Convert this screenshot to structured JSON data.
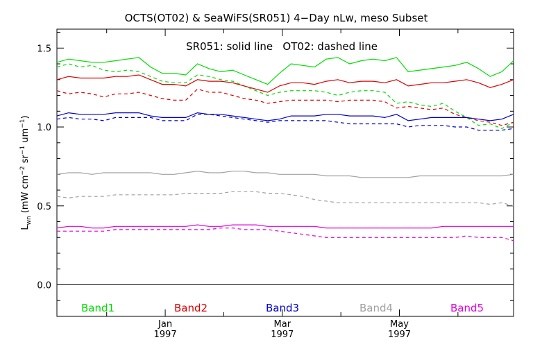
{
  "chart_data": {
    "type": "line",
    "title": "OCTS(OT02) & SeaWiFS(SR051) 4−Day nLw, meso Subset",
    "annotation": "SR051: solid line   OT02: dashed line",
    "ylabel": "L",
    "ylabel_sub": "wn",
    "ylabel_units": " (mW cm",
    "ylabel_units_parts": [
      "(mW cm",
      "−2",
      " sr",
      "−1",
      " um",
      "−1",
      ")"
    ],
    "ylim": [
      -0.2,
      1.62
    ],
    "yticks": [
      0.0,
      0.5,
      1.0,
      1.5
    ],
    "ytick_labels": [
      "0.0",
      "0.5",
      "1.0",
      "1.5"
    ],
    "xlim": [
      0,
      39
    ],
    "x_month_ticks": [
      {
        "label": "Jan",
        "year": "1997",
        "x": 9.25
      },
      {
        "label": "Mar",
        "year": "1997",
        "x": 19.25
      },
      {
        "label": "May",
        "year": "1997",
        "x": 29.25
      }
    ],
    "x_minor_ticks": [
      4.25,
      14.25,
      24.25,
      34.25
    ],
    "reference_line_y": 0.0,
    "grid": false,
    "legend": "bottom",
    "bands": [
      {
        "name": "Band1",
        "color": "#00dd00"
      },
      {
        "name": "Band2",
        "color": "#dd0000"
      },
      {
        "name": "Band3",
        "color": "#0000cc"
      },
      {
        "name": "Band4",
        "color": "#a0a0a0"
      },
      {
        "name": "Band5",
        "color": "#dd00dd"
      }
    ],
    "x": [
      0,
      1,
      2,
      3,
      4,
      5,
      6,
      7,
      8,
      9,
      10,
      11,
      12,
      13,
      14,
      15,
      16,
      17,
      18,
      19,
      20,
      21,
      22,
      23,
      24,
      25,
      26,
      27,
      28,
      29,
      30,
      31,
      32,
      33,
      34,
      35,
      36,
      37,
      38,
      39
    ],
    "series": [
      {
        "band": "Band1",
        "style": "solid",
        "values": [
          1.41,
          1.43,
          1.42,
          1.41,
          1.41,
          1.42,
          1.43,
          1.44,
          1.38,
          1.34,
          1.34,
          1.33,
          1.4,
          1.37,
          1.35,
          1.36,
          1.33,
          1.3,
          1.27,
          1.34,
          1.4,
          1.39,
          1.38,
          1.43,
          1.44,
          1.4,
          1.42,
          1.43,
          1.42,
          1.44,
          1.35,
          1.36,
          1.37,
          1.38,
          1.39,
          1.41,
          1.37,
          1.32,
          1.35,
          1.42
        ]
      },
      {
        "band": "Band1",
        "style": "dashed",
        "values": [
          1.38,
          1.4,
          1.38,
          1.39,
          1.36,
          1.35,
          1.36,
          1.35,
          1.32,
          1.29,
          1.28,
          1.28,
          1.33,
          1.32,
          1.3,
          1.29,
          1.26,
          1.23,
          1.2,
          1.22,
          1.23,
          1.23,
          1.23,
          1.22,
          1.2,
          1.22,
          1.23,
          1.23,
          1.22,
          1.15,
          1.16,
          1.14,
          1.13,
          1.15,
          1.1,
          1.06,
          1.01,
          1.02,
          0.99,
          1.03
        ]
      },
      {
        "band": "Band2",
        "style": "solid",
        "values": [
          1.3,
          1.32,
          1.31,
          1.31,
          1.31,
          1.32,
          1.32,
          1.33,
          1.3,
          1.27,
          1.27,
          1.26,
          1.3,
          1.29,
          1.29,
          1.28,
          1.26,
          1.24,
          1.22,
          1.26,
          1.28,
          1.28,
          1.27,
          1.29,
          1.3,
          1.28,
          1.29,
          1.29,
          1.28,
          1.3,
          1.26,
          1.27,
          1.28,
          1.28,
          1.29,
          1.3,
          1.28,
          1.25,
          1.27,
          1.3
        ]
      },
      {
        "band": "Band2",
        "style": "dashed",
        "values": [
          1.23,
          1.21,
          1.22,
          1.21,
          1.19,
          1.21,
          1.21,
          1.22,
          1.2,
          1.18,
          1.17,
          1.17,
          1.24,
          1.22,
          1.22,
          1.2,
          1.18,
          1.17,
          1.15,
          1.16,
          1.17,
          1.17,
          1.17,
          1.17,
          1.16,
          1.17,
          1.17,
          1.17,
          1.16,
          1.12,
          1.13,
          1.12,
          1.11,
          1.12,
          1.08,
          1.06,
          1.04,
          1.03,
          1.01,
          1.03
        ]
      },
      {
        "band": "Band3",
        "style": "solid",
        "values": [
          1.07,
          1.09,
          1.08,
          1.08,
          1.08,
          1.09,
          1.09,
          1.09,
          1.07,
          1.06,
          1.06,
          1.06,
          1.09,
          1.08,
          1.08,
          1.07,
          1.06,
          1.05,
          1.04,
          1.05,
          1.07,
          1.07,
          1.07,
          1.08,
          1.08,
          1.07,
          1.07,
          1.07,
          1.06,
          1.08,
          1.04,
          1.05,
          1.06,
          1.06,
          1.06,
          1.06,
          1.05,
          1.04,
          1.05,
          1.08
        ]
      },
      {
        "band": "Band3",
        "style": "dashed",
        "values": [
          1.05,
          1.06,
          1.05,
          1.05,
          1.04,
          1.06,
          1.06,
          1.06,
          1.06,
          1.04,
          1.04,
          1.04,
          1.08,
          1.08,
          1.07,
          1.06,
          1.05,
          1.04,
          1.03,
          1.04,
          1.04,
          1.04,
          1.04,
          1.04,
          1.03,
          1.02,
          1.02,
          1.02,
          1.02,
          1.02,
          1.0,
          1.01,
          1.01,
          1.01,
          1.0,
          1.0,
          0.98,
          0.98,
          0.98,
          0.99
        ]
      },
      {
        "band": "Band4",
        "style": "solid",
        "values": [
          0.7,
          0.71,
          0.71,
          0.7,
          0.71,
          0.71,
          0.71,
          0.71,
          0.71,
          0.7,
          0.7,
          0.71,
          0.72,
          0.71,
          0.71,
          0.72,
          0.72,
          0.71,
          0.71,
          0.7,
          0.7,
          0.7,
          0.7,
          0.69,
          0.69,
          0.69,
          0.68,
          0.68,
          0.68,
          0.68,
          0.68,
          0.69,
          0.69,
          0.69,
          0.69,
          0.69,
          0.69,
          0.69,
          0.69,
          0.7
        ]
      },
      {
        "band": "Band4",
        "style": "dashed",
        "values": [
          0.56,
          0.55,
          0.56,
          0.56,
          0.56,
          0.57,
          0.57,
          0.57,
          0.57,
          0.57,
          0.57,
          0.58,
          0.58,
          0.58,
          0.58,
          0.59,
          0.59,
          0.59,
          0.58,
          0.58,
          0.57,
          0.56,
          0.54,
          0.53,
          0.52,
          0.52,
          0.52,
          0.52,
          0.52,
          0.52,
          0.52,
          0.52,
          0.52,
          0.52,
          0.52,
          0.52,
          0.52,
          0.51,
          0.52,
          0.5
        ]
      },
      {
        "band": "Band5",
        "style": "solid",
        "values": [
          0.36,
          0.37,
          0.37,
          0.36,
          0.36,
          0.37,
          0.37,
          0.37,
          0.37,
          0.37,
          0.37,
          0.37,
          0.38,
          0.37,
          0.37,
          0.38,
          0.38,
          0.38,
          0.37,
          0.37,
          0.37,
          0.37,
          0.37,
          0.36,
          0.36,
          0.36,
          0.36,
          0.36,
          0.36,
          0.36,
          0.36,
          0.36,
          0.36,
          0.37,
          0.37,
          0.37,
          0.37,
          0.37,
          0.37,
          0.37
        ]
      },
      {
        "band": "Band5",
        "style": "dashed",
        "values": [
          0.34,
          0.34,
          0.34,
          0.34,
          0.34,
          0.35,
          0.35,
          0.35,
          0.35,
          0.35,
          0.35,
          0.35,
          0.35,
          0.35,
          0.36,
          0.36,
          0.35,
          0.35,
          0.35,
          0.34,
          0.33,
          0.32,
          0.31,
          0.3,
          0.3,
          0.3,
          0.3,
          0.3,
          0.3,
          0.3,
          0.3,
          0.3,
          0.3,
          0.3,
          0.3,
          0.31,
          0.3,
          0.3,
          0.3,
          0.28
        ]
      }
    ]
  }
}
